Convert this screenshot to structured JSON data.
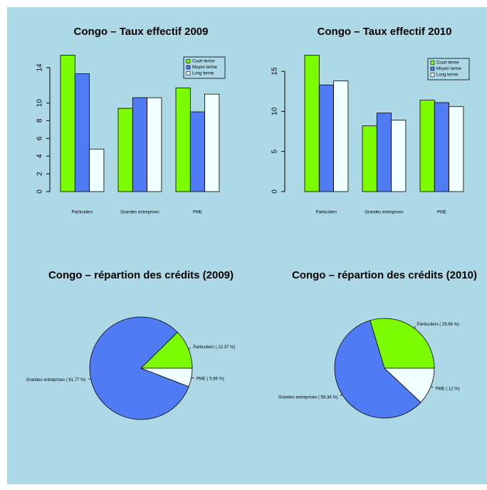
{
  "chart_data": [
    {
      "type": "bar",
      "title": "Congo – Taux effectif 2009",
      "categories": [
        "Particuliers",
        "Grandes entreprises",
        "PME"
      ],
      "series": [
        {
          "name": "Court terme",
          "color": "#7cfc00",
          "values": [
            15.4,
            9.4,
            11.7
          ]
        },
        {
          "name": "Moyen terme",
          "color": "#4f7cf5",
          "values": [
            13.3,
            10.6,
            9.0
          ]
        },
        {
          "name": "Long terme",
          "color": "#f0ffff",
          "values": [
            4.8,
            10.6,
            11.0
          ]
        }
      ],
      "ylim": [
        0,
        16
      ],
      "yticks": [
        0,
        2,
        4,
        6,
        8,
        10,
        14
      ],
      "legend": "topright"
    },
    {
      "type": "bar",
      "title": "Congo – Taux effectif 2010",
      "categories": [
        "Particuliers",
        "Grandes entreprises",
        "PME"
      ],
      "series": [
        {
          "name": "Court terme",
          "color": "#7cfc00",
          "values": [
            17.0,
            8.2,
            11.4
          ]
        },
        {
          "name": "Moyen terme",
          "color": "#4f7cf5",
          "values": [
            13.3,
            9.8,
            11.1
          ]
        },
        {
          "name": "Long terme",
          "color": "#f0ffff",
          "values": [
            13.8,
            8.9,
            10.6
          ]
        }
      ],
      "ylim": [
        0,
        17.5
      ],
      "yticks": [
        0,
        5,
        10,
        15
      ],
      "legend": "topright"
    },
    {
      "type": "pie",
      "title": "Congo – répartion des crédits (2009)",
      "categories": [
        "Particuliers",
        "Grandes entreprises",
        "PME"
      ],
      "values": [
        12.37,
        81.77,
        5.86
      ],
      "value_labels": [
        "( 12.37 %)",
        "( 81.77 %)",
        "( 5.86 %)"
      ],
      "colors": [
        "#7cfc00",
        "#4f7cf5",
        "#f0ffff"
      ]
    },
    {
      "type": "pie",
      "title": "Congo – répartion des crédits (2010)",
      "categories": [
        "Particuliers",
        "Grandes entreprises",
        "PME"
      ],
      "values": [
        29.66,
        58.34,
        12
      ],
      "value_labels": [
        "( 29.66 %)",
        "( 58.34 %)",
        "( 12 %)"
      ],
      "colors": [
        "#7cfc00",
        "#4f7cf5",
        "#f0ffff"
      ]
    }
  ]
}
